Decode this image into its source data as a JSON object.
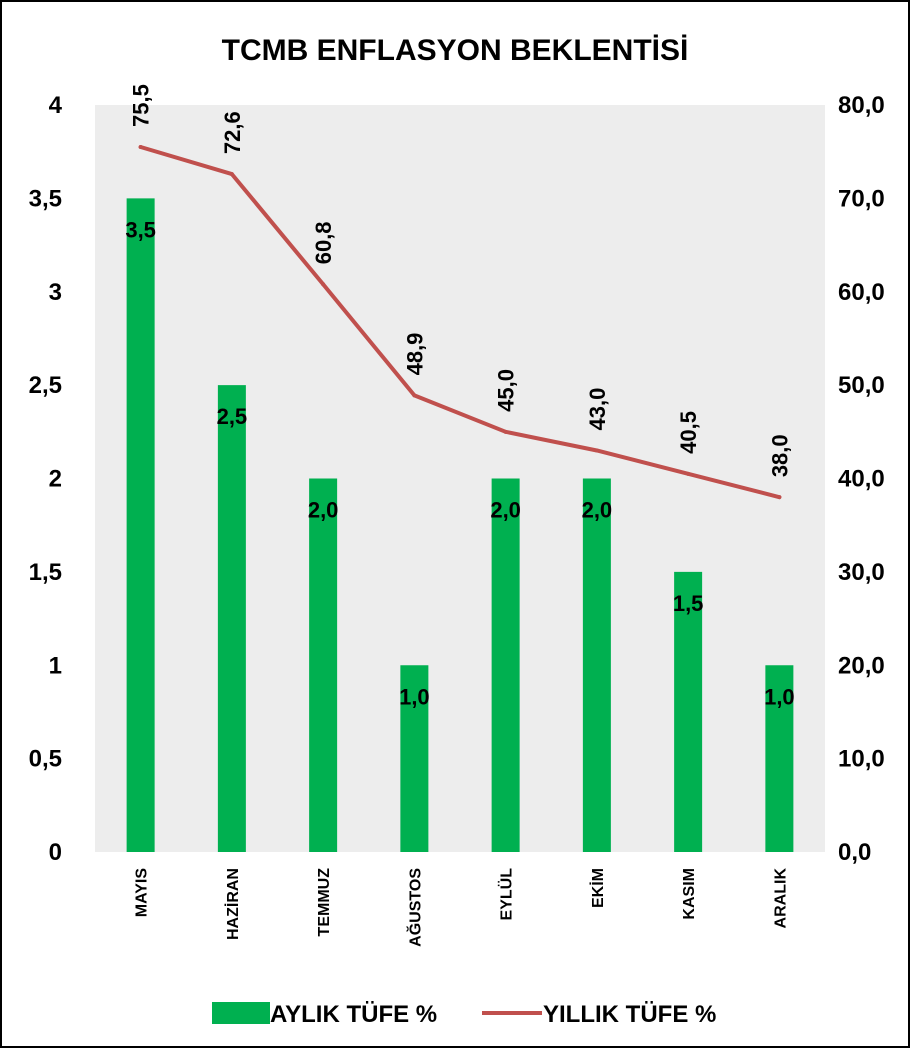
{
  "chart_data": {
    "type": "bar",
    "title": "TCMB ENFLASYON BEKLENTİSİ",
    "categories": [
      "MAYIS",
      "HAZİRAN",
      "TEMMUZ",
      "AĞUSTOS",
      "EYLÜL",
      "EKİM",
      "KASIM",
      "ARALIK"
    ],
    "series": [
      {
        "name": "AYLIK TÜFE %",
        "type": "bar",
        "axis": "left",
        "color": "#00B050",
        "values": [
          3.5,
          2.5,
          2.0,
          1.0,
          2.0,
          2.0,
          1.5,
          1.0
        ],
        "labels": [
          "3,5",
          "2,5",
          "2,0",
          "1,0",
          "2,0",
          "2,0",
          "1,5",
          "1,0"
        ]
      },
      {
        "name": "YILLIK TÜFE %",
        "type": "line",
        "axis": "right",
        "color": "#C0504D",
        "values": [
          75.5,
          72.6,
          60.8,
          48.9,
          45.0,
          43.0,
          40.5,
          38.0
        ],
        "labels": [
          "75,5",
          "72,6",
          "60,8",
          "48,9",
          "45,0",
          "43,0",
          "40,5",
          "38,0"
        ]
      }
    ],
    "y_left": {
      "lim": [
        0,
        4
      ],
      "ticks": [
        0,
        0.5,
        1,
        1.5,
        2,
        2.5,
        3,
        3.5,
        4
      ],
      "tick_labels": [
        "0",
        "0,5",
        "1",
        "1,5",
        "2",
        "2,5",
        "3",
        "3,5",
        "4"
      ]
    },
    "y_right": {
      "lim": [
        0,
        80
      ],
      "ticks": [
        0,
        10,
        20,
        30,
        40,
        50,
        60,
        70,
        80
      ],
      "tick_labels": [
        "0,0",
        "10,0",
        "20,0",
        "30,0",
        "40,0",
        "50,0",
        "60,0",
        "70,0",
        "80,0"
      ]
    },
    "plot_background": "#EDEDED",
    "grid": false,
    "legend_position": "bottom"
  }
}
